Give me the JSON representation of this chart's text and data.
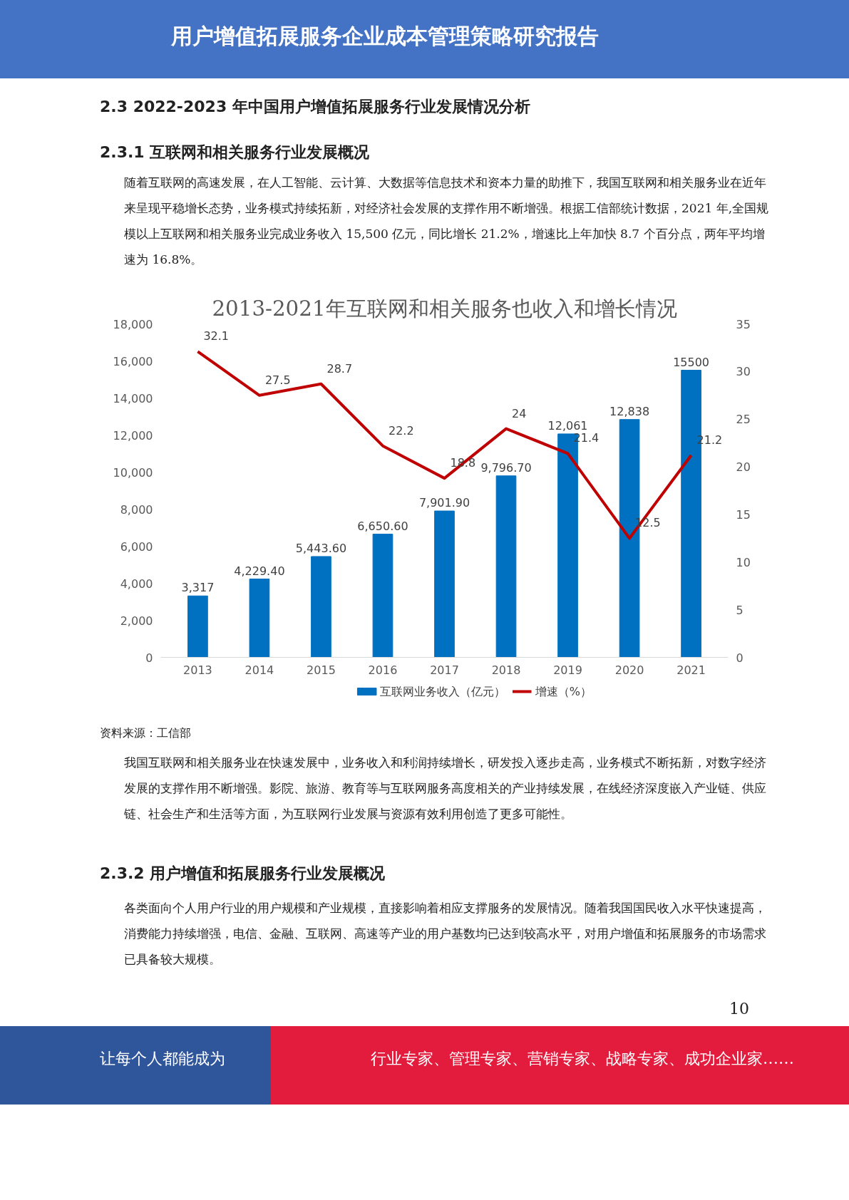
{
  "chart_data": {
    "type": "bar",
    "title": "2013-2021年互联网和相关服务也收入和增长情况",
    "categories": [
      "2013",
      "2014",
      "2015",
      "2016",
      "2017",
      "2018",
      "2019",
      "2020",
      "2021"
    ],
    "series": [
      {
        "name": "互联网业务收入（亿元）",
        "color": "#0070c0",
        "values": [
          3317,
          4229.4,
          5443.6,
          6650.6,
          7901.9,
          9796.7,
          12061,
          12838,
          15500
        ],
        "value_labels": [
          "3,317",
          "4,229.40",
          "5,443.60",
          "6,650.60",
          "7,901.90",
          "9,796.70",
          "12,061",
          "12,838",
          "15500"
        ]
      },
      {
        "name": "增速（%）",
        "type": "line",
        "axis": "y2",
        "color": "#c00000",
        "values": [
          32.1,
          27.5,
          28.7,
          22.2,
          18.8,
          24,
          21.4,
          12.5,
          21.2
        ],
        "value_labels": [
          "32.1",
          "27.5",
          "28.7",
          "22.2",
          "18.8",
          "24",
          "21.4",
          "12.5",
          "21.2"
        ]
      }
    ],
    "ylim": [
      0,
      18000
    ],
    "yticks": [
      0,
      {
        "value": 2000,
        "label": "2,000"
      },
      {
        "value": 4000,
        "label": "4,000"
      },
      {
        "value": 6000,
        "label": "6,000"
      },
      {
        "value": 8000,
        "label": "8,000"
      },
      {
        "value": 10000,
        "label": "10,000"
      },
      {
        "value": 12000,
        "label": "12,000"
      },
      {
        "value": 14000,
        "label": "14,000"
      },
      {
        "value": 16000,
        "label": "16,000"
      },
      {
        "value": 18000,
        "label": "18,000"
      }
    ],
    "y2lim": [
      0,
      35
    ],
    "y2ticks": [
      0,
      5,
      10,
      15,
      20,
      25,
      30,
      35
    ],
    "legend": "bottom",
    "annotations": [
      "用户增值拓展服务企业成本管理策略研究报告",
      "2.3 2022-2023 年中国用户增值拓展服务行业发展情况分析",
      "2.3.1 互联网和相关服务行业发展概况",
      "随着互联网的高速发展，在人工智能、云计算、大数据等信息技术和资本力量的助推下，我国互联网和相关服务业在近年来呈现平稳增长态势，业务模式持续拓新，对经济社会发展的支撑作用不断增强。根据工信部统计数据，2021 年,全国规模以上互联网和相关服务业完成业务收入 15,500 亿元，同比增长 21.2%，增速比上年加快 8.7 个百分点，两年平均增速为 16.8%。",
      "资料来源：工信部",
      "我国互联网和相关服务业在快速发展中，业务收入和利润持续增长，研发投入逐步走高，业务模式不断拓新，对数字经济发展的支撑作用不断增强。影院、旅游、教育等与互联网服务高度相关的产业持续发展，在线经济深度嵌入产业链、供应链、社会生产和生活等方面，为互联网行业发展与资源有效利用创造了更多可能性。",
      "2.3.2 用户增值和拓展服务行业发展概况",
      "各类面向个人用户行业的用户规模和产业规模，直接影响着相应支撑服务的发展情况。随着我国国民收入水平快速提高，消费能力持续增强，电信、金融、互联网、高速等产业的用户基数均已达到较高水平，对用户增值和拓展服务的市场需求已具备较大规模。",
      "10",
      "让每个人都能成为",
      "行业专家、管理专家、营销专家、战略专家、成功企业家……"
    ]
  }
}
